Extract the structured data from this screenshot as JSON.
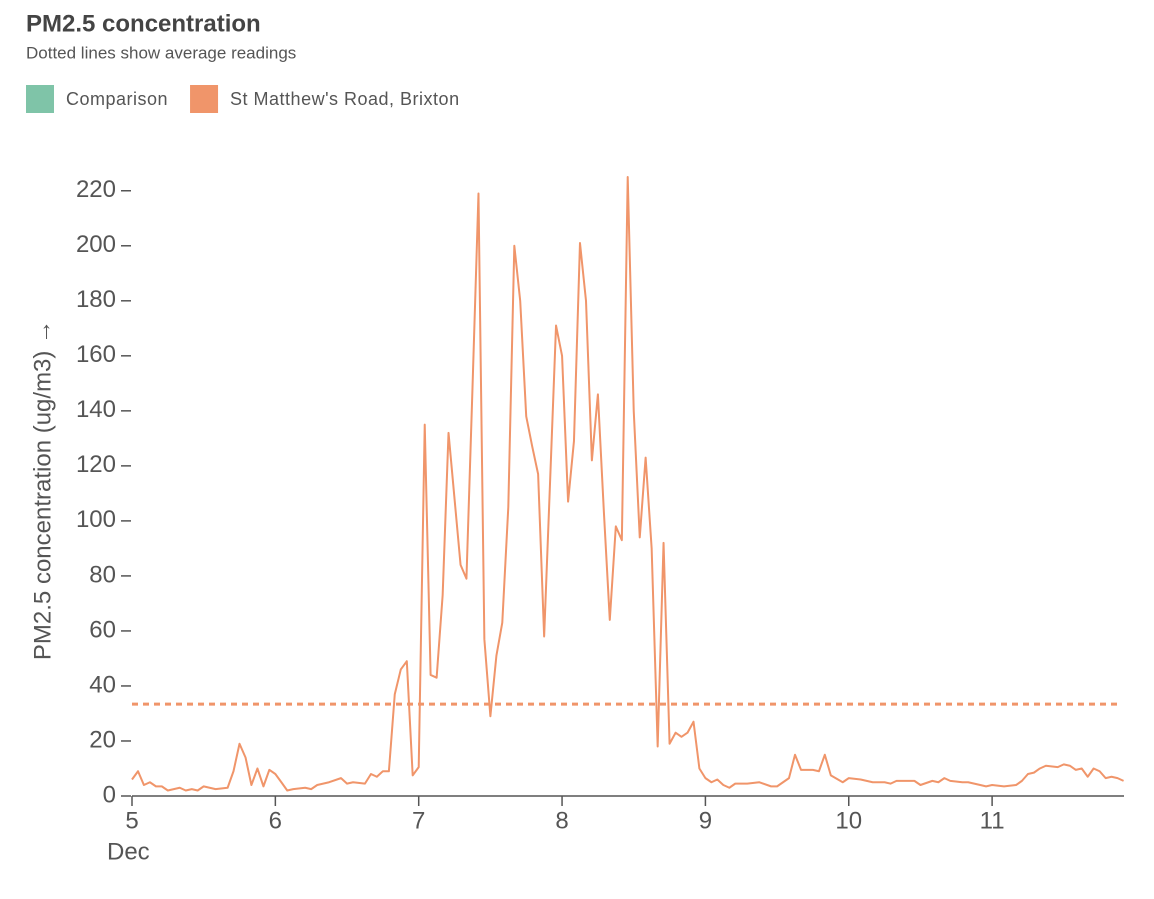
{
  "chart_data": {
    "type": "line",
    "title": "PM2.5 concentration",
    "subtitle": "Dotted lines show average readings",
    "y_label": "PM2.5 concentration (ug/m3) →",
    "x_month": "Dec",
    "xlim": [
      5,
      11.92
    ],
    "xticks": [
      5,
      6,
      7,
      8,
      9,
      10,
      11
    ],
    "ylim": [
      0,
      225
    ],
    "yticks": [
      0,
      20,
      40,
      60,
      80,
      100,
      120,
      140,
      160,
      180,
      200,
      220
    ],
    "series": [
      {
        "name": "Comparison",
        "color": "#7fc4a8",
        "x": [],
        "values": []
      },
      {
        "name": "St Matthew's Road, Brixton",
        "color": "#f0956a",
        "average": 33.4,
        "x": [
          5,
          5.042,
          5.083,
          5.125,
          5.167,
          5.208,
          5.25,
          5.333,
          5.375,
          5.417,
          5.458,
          5.5,
          5.583,
          5.667,
          5.708,
          5.75,
          5.792,
          5.833,
          5.875,
          5.917,
          5.958,
          6,
          6.042,
          6.083,
          6.125,
          6.208,
          6.25,
          6.292,
          6.375,
          6.458,
          6.5,
          6.542,
          6.625,
          6.667,
          6.708,
          6.75,
          6.792,
          6.833,
          6.875,
          6.917,
          6.958,
          7,
          7.042,
          7.083,
          7.125,
          7.167,
          7.208,
          7.25,
          7.292,
          7.333,
          7.375,
          7.417,
          7.458,
          7.5,
          7.542,
          7.583,
          7.625,
          7.667,
          7.708,
          7.75,
          7.792,
          7.833,
          7.875,
          7.917,
          7.958,
          8,
          8.042,
          8.083,
          8.125,
          8.167,
          8.208,
          8.25,
          8.292,
          8.333,
          8.375,
          8.417,
          8.458,
          8.5,
          8.542,
          8.583,
          8.625,
          8.667,
          8.708,
          8.75,
          8.792,
          8.833,
          8.875,
          8.917,
          8.958,
          9,
          9.042,
          9.083,
          9.125,
          9.167,
          9.208,
          9.292,
          9.375,
          9.458,
          9.5,
          9.583,
          9.625,
          9.667,
          9.75,
          9.792,
          9.833,
          9.875,
          9.958,
          10,
          10.083,
          10.167,
          10.25,
          10.292,
          10.333,
          10.458,
          10.5,
          10.583,
          10.625,
          10.667,
          10.708,
          10.792,
          10.833,
          10.917,
          10.958,
          11,
          11.083,
          11.167,
          11.208,
          11.25,
          11.292,
          11.333,
          11.375,
          11.458,
          11.5,
          11.542,
          11.583,
          11.625,
          11.667,
          11.708,
          11.75,
          11.792,
          11.833,
          11.875,
          11.917
        ],
        "values": [
          6,
          9,
          4,
          5,
          3.5,
          3.5,
          2,
          3,
          2,
          2.5,
          2,
          3.5,
          2.5,
          3,
          9,
          19,
          14,
          4,
          10,
          3.5,
          9.5,
          8,
          5,
          2,
          2.5,
          3,
          2.5,
          4,
          5,
          6.5,
          4.5,
          5,
          4.5,
          8,
          7,
          9,
          9,
          37,
          46,
          49,
          7.5,
          10.5,
          135,
          44,
          43,
          73,
          132,
          108,
          84,
          79,
          148,
          219,
          57,
          29,
          51,
          63,
          105,
          200,
          180,
          138,
          127,
          117,
          58,
          115,
          171,
          160,
          107,
          129,
          201,
          180,
          122,
          146,
          103,
          64,
          98,
          93,
          225,
          140,
          94,
          123,
          90,
          18,
          92,
          19,
          23,
          21.5,
          23,
          27,
          10,
          6.5,
          5,
          6,
          4,
          3,
          4.5,
          4.5,
          5,
          3.5,
          3.5,
          6.5,
          15,
          9.5,
          9.5,
          9,
          15,
          7.5,
          5,
          6.5,
          6,
          5,
          5,
          4.5,
          5.5,
          5.5,
          4,
          5.5,
          5,
          6.5,
          5.5,
          5,
          5,
          4,
          3.5,
          4,
          3.5,
          4,
          5.5,
          8,
          8.5,
          10,
          11,
          10.5,
          11.5,
          11,
          9.5,
          10,
          7,
          10,
          9,
          6.5,
          7,
          6.5,
          5.5
        ]
      }
    ]
  }
}
